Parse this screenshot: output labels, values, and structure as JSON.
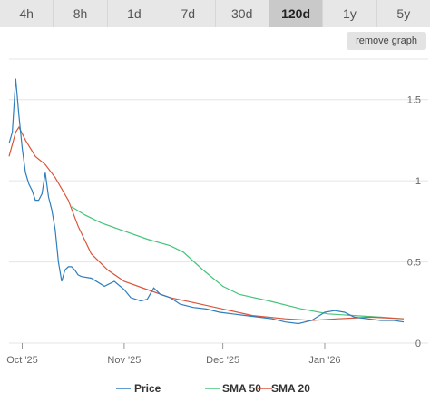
{
  "range_tabs": [
    {
      "label": "4h",
      "active": false
    },
    {
      "label": "8h",
      "active": false
    },
    {
      "label": "1d",
      "active": false
    },
    {
      "label": "7d",
      "active": false
    },
    {
      "label": "30d",
      "active": false
    },
    {
      "label": "120d",
      "active": true
    },
    {
      "label": "1y",
      "active": false
    },
    {
      "label": "5y",
      "active": false
    }
  ],
  "remove_graph_label": "remove graph",
  "chart_data": {
    "type": "line",
    "title": "",
    "xlabel": "",
    "ylabel": "",
    "x_ticks": [
      "Oct '25",
      "Nov '25",
      "Dec '25",
      "Jan '26"
    ],
    "y_ticks": [
      "0",
      "0.5",
      "1",
      "1.5"
    ],
    "ylim": [
      0,
      1.75
    ],
    "grid": true,
    "legend_position": "bottom",
    "series": [
      {
        "name": "Price",
        "color": "#2f7ebd",
        "points": [
          [
            "2025-09-27",
            1.23
          ],
          [
            "2025-09-28",
            1.3
          ],
          [
            "2025-09-29",
            1.63
          ],
          [
            "2025-09-30",
            1.4
          ],
          [
            "2025-10-01",
            1.2
          ],
          [
            "2025-10-02",
            1.05
          ],
          [
            "2025-10-03",
            0.98
          ],
          [
            "2025-10-04",
            0.94
          ],
          [
            "2025-10-05",
            0.88
          ],
          [
            "2025-10-06",
            0.88
          ],
          [
            "2025-10-07",
            0.92
          ],
          [
            "2025-10-08",
            1.05
          ],
          [
            "2025-10-09",
            0.9
          ],
          [
            "2025-10-10",
            0.82
          ],
          [
            "2025-10-11",
            0.7
          ],
          [
            "2025-10-12",
            0.5
          ],
          [
            "2025-10-13",
            0.38
          ],
          [
            "2025-10-14",
            0.45
          ],
          [
            "2025-10-15",
            0.47
          ],
          [
            "2025-10-16",
            0.47
          ],
          [
            "2025-10-17",
            0.45
          ],
          [
            "2025-10-18",
            0.42
          ],
          [
            "2025-10-19",
            0.41
          ],
          [
            "2025-10-22",
            0.4
          ],
          [
            "2025-10-26",
            0.35
          ],
          [
            "2025-10-29",
            0.38
          ],
          [
            "2025-11-01",
            0.33
          ],
          [
            "2025-11-03",
            0.28
          ],
          [
            "2025-11-06",
            0.26
          ],
          [
            "2025-11-08",
            0.27
          ],
          [
            "2025-11-10",
            0.34
          ],
          [
            "2025-11-12",
            0.3
          ],
          [
            "2025-11-15",
            0.28
          ],
          [
            "2025-11-18",
            0.24
          ],
          [
            "2025-11-22",
            0.22
          ],
          [
            "2025-11-26",
            0.21
          ],
          [
            "2025-11-30",
            0.19
          ],
          [
            "2025-12-04",
            0.18
          ],
          [
            "2025-12-08",
            0.17
          ],
          [
            "2025-12-12",
            0.16
          ],
          [
            "2025-12-16",
            0.15
          ],
          [
            "2025-12-20",
            0.13
          ],
          [
            "2025-12-24",
            0.12
          ],
          [
            "2025-12-28",
            0.14
          ],
          [
            "2026-01-01",
            0.19
          ],
          [
            "2026-01-04",
            0.2
          ],
          [
            "2026-01-07",
            0.19
          ],
          [
            "2026-01-10",
            0.16
          ],
          [
            "2026-01-14",
            0.15
          ],
          [
            "2026-01-18",
            0.14
          ],
          [
            "2026-01-22",
            0.14
          ],
          [
            "2026-01-25",
            0.13
          ]
        ]
      },
      {
        "name": "SMA 50",
        "color": "#47c47a",
        "points": [
          [
            "2025-10-16",
            0.84
          ],
          [
            "2025-10-20",
            0.79
          ],
          [
            "2025-10-25",
            0.74
          ],
          [
            "2025-11-01",
            0.69
          ],
          [
            "2025-11-08",
            0.64
          ],
          [
            "2025-11-15",
            0.6
          ],
          [
            "2025-11-19",
            0.56
          ],
          [
            "2025-11-25",
            0.45
          ],
          [
            "2025-12-01",
            0.35
          ],
          [
            "2025-12-06",
            0.3
          ],
          [
            "2025-12-15",
            0.26
          ],
          [
            "2025-12-25",
            0.21
          ],
          [
            "2026-01-02",
            0.18
          ],
          [
            "2026-01-10",
            0.17
          ],
          [
            "2026-01-18",
            0.16
          ],
          [
            "2026-01-25",
            0.15
          ]
        ]
      },
      {
        "name": "SMA 20",
        "color": "#d9563c",
        "points": [
          [
            "2025-09-27",
            1.15
          ],
          [
            "2025-09-29",
            1.3
          ],
          [
            "2025-09-30",
            1.33
          ],
          [
            "2025-10-02",
            1.25
          ],
          [
            "2025-10-05",
            1.15
          ],
          [
            "2025-10-08",
            1.1
          ],
          [
            "2025-10-11",
            1.02
          ],
          [
            "2025-10-15",
            0.88
          ],
          [
            "2025-10-18",
            0.72
          ],
          [
            "2025-10-22",
            0.55
          ],
          [
            "2025-10-27",
            0.45
          ],
          [
            "2025-11-01",
            0.38
          ],
          [
            "2025-11-08",
            0.33
          ],
          [
            "2025-11-15",
            0.28
          ],
          [
            "2025-11-22",
            0.25
          ],
          [
            "2025-12-01",
            0.21
          ],
          [
            "2025-12-10",
            0.17
          ],
          [
            "2025-12-20",
            0.15
          ],
          [
            "2025-12-28",
            0.14
          ],
          [
            "2026-01-05",
            0.15
          ],
          [
            "2026-01-15",
            0.16
          ],
          [
            "2026-01-25",
            0.15
          ]
        ]
      }
    ]
  }
}
